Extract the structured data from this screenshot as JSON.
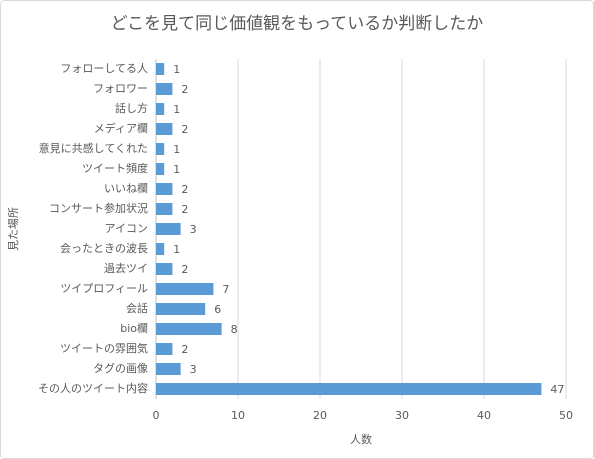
{
  "chart_data": {
    "type": "bar",
    "orientation": "horizontal",
    "title": "どこを見て同じ価値観をもっているか判断したか",
    "xlabel": "人数",
    "ylabel": "見た場所",
    "categories": [
      "フォローしてる人",
      "フォロワー",
      "話し方",
      "メディア欄",
      "意見に共感してくれた",
      "ツイート頻度",
      "いいね欄",
      "コンサート参加状況",
      "アイコン",
      "会ったときの波長",
      "過去ツイ",
      "ツイプロフィール",
      "会話",
      "bio欄",
      "ツイートの雰囲気",
      "タグの画像",
      "その人のツイート内容"
    ],
    "values": [
      1,
      2,
      1,
      2,
      1,
      1,
      2,
      2,
      3,
      1,
      2,
      7,
      6,
      8,
      2,
      3,
      47
    ],
    "color": "#5b9bd5",
    "xlim": [
      0,
      50
    ],
    "xticks": [
      0,
      10,
      20,
      30,
      40,
      50
    ],
    "grid": true
  }
}
